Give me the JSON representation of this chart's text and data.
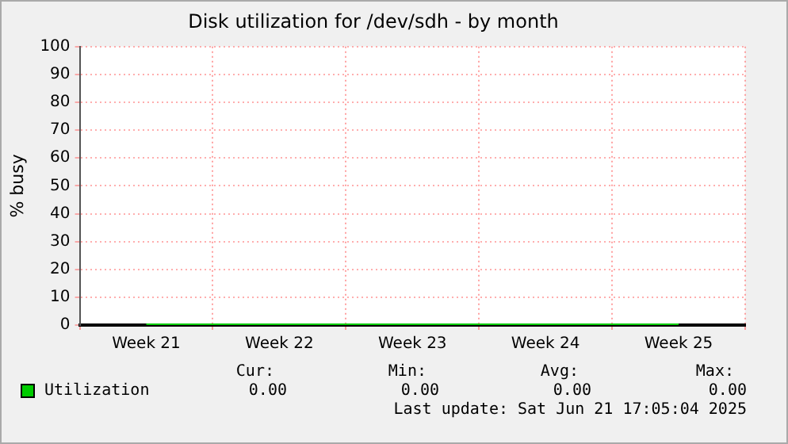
{
  "chart_data": {
    "type": "line",
    "title": "Disk utilization for /dev/sdh - by month",
    "ylabel": "% busy",
    "categories": [
      "Week 21",
      "Week 22",
      "Week 23",
      "Week 24",
      "Week 25"
    ],
    "series": [
      {
        "name": "Utilization",
        "color": "#00cc00",
        "values": [
          0,
          0,
          0,
          0,
          0
        ]
      }
    ],
    "ylim": [
      0,
      100
    ],
    "yticks": [
      0,
      10,
      20,
      30,
      40,
      50,
      60,
      70,
      80,
      90,
      100
    ],
    "grid": true,
    "legend": "bottom left",
    "marker": "none",
    "line_style": "solid",
    "annotations": [
      "Cur:",
      "Min:",
      "Avg:",
      "Max:",
      "0.00",
      "0.00",
      "0.00",
      "0.00",
      "Last update: Sat Jun 21 17:05:04 2025"
    ]
  }
}
